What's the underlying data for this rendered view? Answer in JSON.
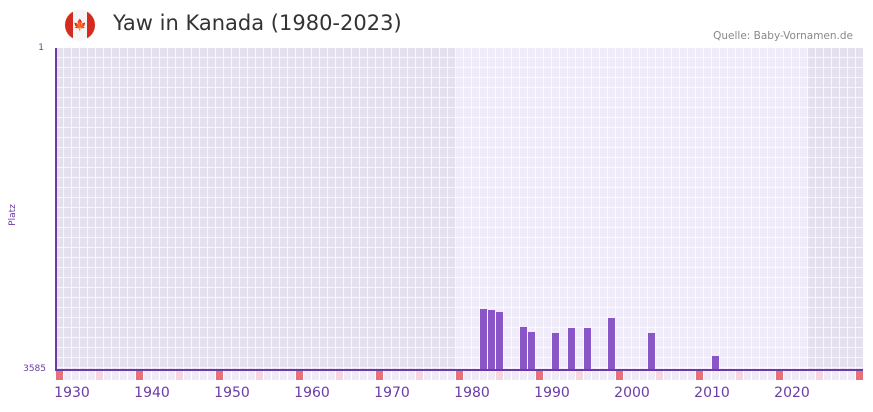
{
  "header": {
    "title": "Yaw in Kanada (1980-2023)",
    "source": "Quelle: Baby-Vornamen.de",
    "flag_icon": "canada-flag-icon"
  },
  "colors": {
    "bar": "#8a56c7",
    "axis": "#6a3aa6",
    "bg_outside": "#e4e0ee",
    "bg_highlight": "#efebf8",
    "decade_marker": "#e5727a",
    "half_decade_marker": "#f5d6e0",
    "year_marker": "#eeeaf6"
  },
  "chart_data": {
    "type": "bar",
    "title": "Yaw in Kanada (1980-2023)",
    "xlabel": "",
    "ylabel": "Platz",
    "y_inverted": true,
    "ylim": [
      1,
      3585
    ],
    "xlim": [
      1930,
      2030
    ],
    "highlight_range": [
      1980,
      2023
    ],
    "x_ticks": [
      1930,
      1940,
      1950,
      1960,
      1970,
      1980,
      1990,
      2000,
      2010,
      2020
    ],
    "y_ticks": [
      1,
      3585
    ],
    "grid": true,
    "legend": null,
    "x": [
      1983,
      1984,
      1985,
      1988,
      1989,
      1992,
      1994,
      1996,
      1999,
      2004,
      2012
    ],
    "values": [
      2906,
      2917,
      2940,
      3106,
      3162,
      3173,
      3117,
      3117,
      3006,
      3173,
      3429
    ],
    "annotation": "Quelle: Baby-Vornamen.de"
  },
  "axis": {
    "y_top_label": "1",
    "y_bottom_label": "3585",
    "y_title": "Platz",
    "x_labels": [
      "1930",
      "1940",
      "1950",
      "1960",
      "1970",
      "1980",
      "1990",
      "2000",
      "2010",
      "2020"
    ]
  }
}
